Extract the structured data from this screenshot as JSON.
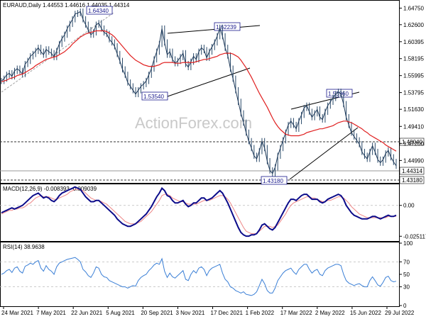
{
  "chart_data": [
    {
      "type": "line",
      "title": "EURAUD,Daily  1.44553 1.44616 1.44035 1.44314",
      "watermark": "ActionForex.com",
      "x_labels": [
        "24 Mar 2021",
        "7 May 2021",
        "22 Jun 2021",
        "5 Aug 2021",
        "20 Sep 2021",
        "3 Nov 2021",
        "17 Dec 2021",
        "1 Feb 2022",
        "17 Mar 2022",
        "2 May 2022",
        "15 Jun 2022",
        "29 Jul 2022"
      ],
      "y_ticks": [
        "1.64750",
        "1.62600",
        "1.60395",
        "1.58195",
        "1.55995",
        "1.53795",
        "1.51630",
        "1.49410",
        "1.47200",
        "1.44990"
      ],
      "ylim": [
        1.4245,
        1.6525
      ],
      "price_labels": [
        "1.48040",
        "1.44314",
        "1.43180"
      ],
      "annotations": [
        "1.64340",
        "1.62239",
        "1.53540",
        "1.53960",
        "1.43180"
      ],
      "series": [
        {
          "values": [
            1.553,
            1.556,
            1.561,
            1.563,
            1.559,
            1.566,
            1.569,
            1.566,
            1.562,
            1.575,
            1.579,
            1.585,
            1.588,
            1.592,
            1.596,
            1.591,
            1.587,
            1.594,
            1.591,
            1.589,
            1.584,
            1.592,
            1.601,
            1.608,
            1.613,
            1.621,
            1.627,
            1.633,
            1.64,
            1.641,
            1.643,
            1.633,
            1.626,
            1.619,
            1.613,
            1.616,
            1.626,
            1.628,
            1.621,
            1.616,
            1.614,
            1.607,
            1.603,
            1.598,
            1.588,
            1.579,
            1.568,
            1.561,
            1.551,
            1.546,
            1.541,
            1.536,
            1.541,
            1.546,
            1.549,
            1.553,
            1.561,
            1.569,
            1.581,
            1.591,
            1.601,
            1.621,
            1.603,
            1.587,
            1.591,
            1.581,
            1.576,
            1.579,
            1.584,
            1.589,
            1.575,
            1.571,
            1.578,
            1.585,
            1.581,
            1.591,
            1.596,
            1.593,
            1.583,
            1.591,
            1.597,
            1.603,
            1.611,
            1.622,
            1.611,
            1.596,
            1.586,
            1.569,
            1.556,
            1.541,
            1.526,
            1.511,
            1.499,
            1.486,
            1.475,
            1.466,
            1.456,
            1.452,
            1.462,
            1.475,
            1.466,
            1.449,
            1.437,
            1.433,
            1.441,
            1.456,
            1.466,
            1.476,
            1.486,
            1.496,
            1.501,
            1.496,
            1.491,
            1.501,
            1.509,
            1.518,
            1.521,
            1.513,
            1.506,
            1.511,
            1.516,
            1.506,
            1.503,
            1.513,
            1.521,
            1.526,
            1.531,
            1.536,
            1.539,
            1.536,
            1.523,
            1.506,
            1.496,
            1.486,
            1.481,
            1.476,
            1.471,
            1.461,
            1.456,
            1.452,
            1.461,
            1.469,
            1.461,
            1.451,
            1.447,
            1.451,
            1.459,
            1.463,
            1.454,
            1.448,
            1.443
          ]
        },
        {
          "name": "MA",
          "values": [
            1.552,
            1.553,
            1.554,
            1.556,
            1.557,
            1.558,
            1.56,
            1.561,
            1.562,
            1.564,
            1.566,
            1.568,
            1.57,
            1.573,
            1.575,
            1.577,
            1.579,
            1.581,
            1.582,
            1.583,
            1.584,
            1.585,
            1.587,
            1.589,
            1.591,
            1.594,
            1.597,
            1.601,
            1.604,
            1.607,
            1.61,
            1.612,
            1.614,
            1.615,
            1.616,
            1.617,
            1.618,
            1.618,
            1.618,
            1.618,
            1.617,
            1.615,
            1.613,
            1.61,
            1.606,
            1.602,
            1.598,
            1.594,
            1.59,
            1.586,
            1.583,
            1.58,
            1.578,
            1.576,
            1.574,
            1.573,
            1.572,
            1.572,
            1.572,
            1.573,
            1.574,
            1.576,
            1.577,
            1.577,
            1.577,
            1.577,
            1.576,
            1.576,
            1.576,
            1.577,
            1.577,
            1.577,
            1.577,
            1.577,
            1.578,
            1.579,
            1.58,
            1.581,
            1.581,
            1.582,
            1.583,
            1.584,
            1.585,
            1.587,
            1.588,
            1.589,
            1.589,
            1.589,
            1.588,
            1.586,
            1.584,
            1.58,
            1.575,
            1.57,
            1.564,
            1.558,
            1.551,
            1.544,
            1.537,
            1.531,
            1.525,
            1.519,
            1.512,
            1.505,
            1.499,
            1.494,
            1.49,
            1.487,
            1.484,
            1.483,
            1.482,
            1.482,
            1.482,
            1.482,
            1.483,
            1.484,
            1.486,
            1.487,
            1.488,
            1.489,
            1.49,
            1.491,
            1.491,
            1.492,
            1.493,
            1.494,
            1.495,
            1.497,
            1.499,
            1.5,
            1.501,
            1.501,
            1.5,
            1.499,
            1.497,
            1.495,
            1.493,
            1.491,
            1.488,
            1.486,
            1.483,
            1.481,
            1.479,
            1.477,
            1.475,
            1.473,
            1.47,
            1.468,
            1.466,
            1.464,
            1.462
          ]
        }
      ]
    },
    {
      "type": "line",
      "title": "MACD(12,26,9) -0.008393 -0.009039",
      "y_ticks": [
        "0.00",
        "-0.025117"
      ],
      "ylim": [
        -0.029,
        0.016
      ],
      "series": [
        {
          "values": [
            -0.006,
            -0.005,
            -0.004,
            -0.003,
            -0.002,
            -0.003,
            -0.002,
            -0.001,
            0.0,
            0.002,
            0.004,
            0.006,
            0.008,
            0.009,
            0.01,
            0.008,
            0.006,
            0.007,
            0.006,
            0.004,
            0.003,
            0.005,
            0.008,
            0.01,
            0.011,
            0.012,
            0.013,
            0.014,
            0.015,
            0.014,
            0.013,
            0.01,
            0.007,
            0.005,
            0.003,
            0.003,
            0.004,
            0.004,
            0.002,
            0.0,
            -0.002,
            -0.004,
            -0.006,
            -0.008,
            -0.011,
            -0.013,
            -0.015,
            -0.016,
            -0.017,
            -0.017,
            -0.016,
            -0.015,
            -0.013,
            -0.011,
            -0.009,
            -0.007,
            -0.004,
            -0.001,
            0.003,
            0.007,
            0.01,
            0.014,
            0.012,
            0.008,
            0.007,
            0.004,
            0.002,
            0.002,
            0.003,
            0.004,
            0.001,
            -0.001,
            0.0,
            0.002,
            0.002,
            0.004,
            0.006,
            0.006,
            0.004,
            0.005,
            0.006,
            0.008,
            0.01,
            0.012,
            0.01,
            0.006,
            0.002,
            -0.003,
            -0.008,
            -0.013,
            -0.018,
            -0.022,
            -0.024,
            -0.025,
            -0.025,
            -0.024,
            -0.024,
            -0.023,
            -0.02,
            -0.016,
            -0.015,
            -0.017,
            -0.019,
            -0.02,
            -0.018,
            -0.014,
            -0.01,
            -0.006,
            -0.002,
            0.002,
            0.005,
            0.005,
            0.004,
            0.006,
            0.008,
            0.009,
            0.009,
            0.007,
            0.005,
            0.005,
            0.005,
            0.003,
            0.002,
            0.003,
            0.005,
            0.006,
            0.007,
            0.008,
            0.009,
            0.008,
            0.005,
            0.0,
            -0.003,
            -0.006,
            -0.008,
            -0.009,
            -0.01,
            -0.011,
            -0.011,
            -0.011,
            -0.01,
            -0.009,
            -0.009,
            -0.01,
            -0.011,
            -0.01,
            -0.009,
            -0.008,
            -0.009,
            -0.009,
            -0.008
          ]
        },
        {
          "name": "signal",
          "values": [
            -0.007,
            -0.006,
            -0.005,
            -0.004,
            -0.004,
            -0.003,
            -0.003,
            -0.002,
            -0.002,
            -0.001,
            0.001,
            0.002,
            0.004,
            0.006,
            0.007,
            0.008,
            0.007,
            0.007,
            0.007,
            0.006,
            0.005,
            0.005,
            0.006,
            0.007,
            0.008,
            0.009,
            0.011,
            0.012,
            0.013,
            0.013,
            0.013,
            0.012,
            0.01,
            0.008,
            0.006,
            0.005,
            0.004,
            0.004,
            0.003,
            0.002,
            0.001,
            -0.001,
            -0.003,
            -0.005,
            -0.007,
            -0.009,
            -0.011,
            -0.013,
            -0.014,
            -0.015,
            -0.015,
            -0.015,
            -0.014,
            -0.013,
            -0.011,
            -0.009,
            -0.007,
            -0.005,
            -0.002,
            0.001,
            0.004,
            0.008,
            0.009,
            0.009,
            0.008,
            0.006,
            0.005,
            0.004,
            0.003,
            0.003,
            0.002,
            0.001,
            0.001,
            0.001,
            0.001,
            0.002,
            0.003,
            0.004,
            0.004,
            0.004,
            0.005,
            0.006,
            0.007,
            0.008,
            0.008,
            0.007,
            0.005,
            0.002,
            -0.002,
            -0.006,
            -0.01,
            -0.014,
            -0.018,
            -0.021,
            -0.022,
            -0.023,
            -0.023,
            -0.023,
            -0.021,
            -0.019,
            -0.017,
            -0.017,
            -0.017,
            -0.018,
            -0.017,
            -0.016,
            -0.013,
            -0.01,
            -0.007,
            -0.003,
            0.0,
            0.002,
            0.003,
            0.004,
            0.005,
            0.006,
            0.007,
            0.007,
            0.006,
            0.006,
            0.005,
            0.004,
            0.003,
            0.003,
            0.004,
            0.004,
            0.005,
            0.006,
            0.007,
            0.007,
            0.006,
            0.004,
            0.002,
            -0.001,
            -0.003,
            -0.005,
            -0.007,
            -0.008,
            -0.009,
            -0.01,
            -0.01,
            -0.01,
            -0.01,
            -0.01,
            -0.01,
            -0.01,
            -0.01,
            -0.009,
            -0.009,
            -0.009,
            -0.009
          ]
        }
      ]
    },
    {
      "type": "line",
      "title": "RSI(14) 38.9638",
      "y_ticks": [
        "100",
        "70",
        "50",
        "30",
        "0"
      ],
      "ylim": [
        0,
        100
      ],
      "series": [
        {
          "values": [
            50,
            52,
            56,
            58,
            53,
            60,
            62,
            55,
            52,
            63,
            65,
            68,
            66,
            70,
            72,
            60,
            55,
            64,
            58,
            55,
            50,
            62,
            68,
            70,
            72,
            74,
            75,
            76,
            77,
            74,
            70,
            58,
            54,
            48,
            45,
            52,
            62,
            60,
            50,
            46,
            45,
            40,
            38,
            36,
            34,
            32,
            30,
            30,
            28,
            30,
            32,
            31,
            40,
            45,
            48,
            50,
            56,
            60,
            65,
            68,
            66,
            75,
            55,
            45,
            52,
            46,
            44,
            48,
            52,
            56,
            42,
            40,
            50,
            56,
            52,
            60,
            62,
            58,
            48,
            56,
            60,
            62,
            64,
            66,
            52,
            42,
            38,
            30,
            28,
            24,
            22,
            20,
            22,
            18,
            17,
            16,
            18,
            22,
            32,
            42,
            35,
            24,
            20,
            20,
            28,
            40,
            46,
            52,
            56,
            58,
            60,
            54,
            50,
            58,
            62,
            66,
            66,
            58,
            52,
            56,
            58,
            50,
            48,
            56,
            60,
            62,
            64,
            66,
            66,
            64,
            50,
            40,
            36,
            34,
            32,
            34,
            35,
            32,
            30,
            30,
            40,
            46,
            40,
            33,
            31,
            37,
            45,
            47,
            40,
            38,
            39
          ]
        }
      ]
    }
  ]
}
